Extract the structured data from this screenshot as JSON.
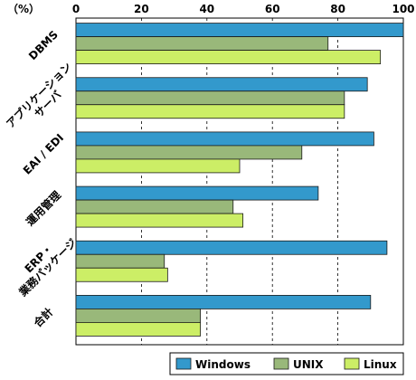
{
  "chart_data": {
    "type": "bar",
    "orientation": "horizontal",
    "unit_label": "（%）",
    "xlim": [
      0,
      100
    ],
    "x_ticks": [
      "0",
      "20",
      "40",
      "60",
      "80",
      "100"
    ],
    "grid": "dashed vertical lines at 20, 40, 60, 80",
    "categories": [
      [
        "DBMS"
      ],
      [
        "アプリケーション",
        "サーバ"
      ],
      [
        "EAI / EDI"
      ],
      [
        "運用管理"
      ],
      [
        "ERP・",
        "業務パッケージ"
      ],
      [
        "合計"
      ]
    ],
    "series": [
      {
        "name": "Windows",
        "color": "#3399cc",
        "values": [
          100,
          89,
          91,
          74,
          95,
          90
        ]
      },
      {
        "name": "UNIX",
        "color": "#99b87a",
        "values": [
          77,
          82,
          69,
          48,
          27,
          38
        ]
      },
      {
        "name": "Linux",
        "color": "#ccee66",
        "values": [
          93,
          82,
          50,
          51,
          28,
          38
        ]
      }
    ],
    "legend_position": "bottom-right"
  }
}
